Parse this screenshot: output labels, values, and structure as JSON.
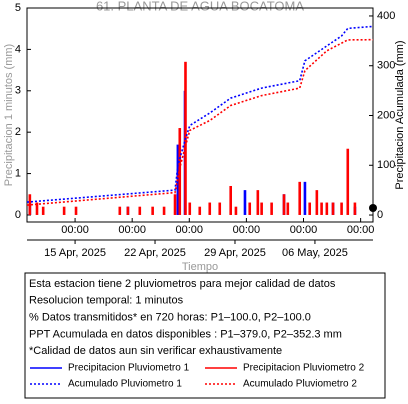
{
  "chart_data": {
    "type": "bar",
    "title": "61. PLANTA DE AGUA BOCATOMA",
    "ylabel": "Precipitacion 1 minutos (mm)",
    "y2label": "Precipitacion Acumulada (mm)",
    "xlabel": "Tiempo",
    "xlim": [
      "2025-04-10 19:00",
      "2025-05-11 02:00"
    ],
    "xticks": [
      {
        "value": "2025-04-15 00:00",
        "label": "00:00"
      },
      {
        "value": "2025-04-20 00:00",
        "label": "00:00"
      },
      {
        "value": "2025-04-25 00:00",
        "label": "00:00"
      },
      {
        "value": "2025-04-30 00:00",
        "label": "00:00"
      },
      {
        "value": "2025-05-05 00:00",
        "label": "00:00"
      },
      {
        "value": "2025-05-10 00:00",
        "label": "00:00"
      }
    ],
    "xdate_labels": [
      {
        "value": "2025-04-15 00:00",
        "label": "15 Apr, 2025"
      },
      {
        "value": "2025-04-22 00:00",
        "label": "22 Apr, 2025"
      },
      {
        "value": "2025-04-29 00:00",
        "label": "29 Apr, 2025"
      },
      {
        "value": "2025-05-06 00:00",
        "label": "06 May, 2025"
      }
    ],
    "ylim": [
      -0.17,
      5.0
    ],
    "yticks": [
      0,
      1,
      2,
      3,
      4,
      5
    ],
    "y2lim": [
      -14,
      416
    ],
    "y2ticks": [
      0,
      100,
      200,
      300,
      400
    ],
    "grid": false,
    "legend": "bottom",
    "series": [
      {
        "name": "Precipitacion Pluviometro 1",
        "type": "bar",
        "color": "#0000ff",
        "x": [
          "2025-04-11 01:00",
          "2025-04-19 15:00",
          "2025-04-24 00:00",
          "2025-04-24 15:00",
          "2025-04-29 21:00",
          "2025-05-03 07:00",
          "2025-05-05 03:00",
          "2025-05-07 14:00",
          "2025-05-09 12:00"
        ],
        "values": [
          0.3,
          0.2,
          1.7,
          3.0,
          0.6,
          0.5,
          0.8,
          0.3,
          0.2
        ]
      },
      {
        "name": "Precipitacion Pluviometro 2",
        "type": "bar",
        "color": "#ff0000",
        "x": [
          "2025-04-11 01:00",
          "2025-04-11 16:00",
          "2025-04-12 05:00",
          "2025-04-14 01:00",
          "2025-04-15 02:00",
          "2025-04-18 22:00",
          "2025-04-19 15:00",
          "2025-04-20 16:00",
          "2025-04-21 19:00",
          "2025-04-22 19:00",
          "2025-04-23 18:00",
          "2025-04-24 04:00",
          "2025-04-24 16:00",
          "2025-04-25 01:00",
          "2025-04-25 22:00",
          "2025-04-26 19:00",
          "2025-04-27 16:00",
          "2025-04-28 15:00",
          "2025-04-29 02:00",
          "2025-04-30 07:00",
          "2025-05-01 00:00",
          "2025-05-01 08:00",
          "2025-05-02 05:00",
          "2025-05-03 07:00",
          "2025-05-03 15:00",
          "2025-05-04 16:00",
          "2025-05-05 13:00",
          "2025-05-06 04:00",
          "2025-05-06 14:00",
          "2025-05-07 01:00",
          "2025-05-07 14:00",
          "2025-05-08 08:00",
          "2025-05-08 21:00",
          "2025-05-09 12:00"
        ],
        "values": [
          0.5,
          0.3,
          0.2,
          0.2,
          0.2,
          0.2,
          0.2,
          0.2,
          0.2,
          0.2,
          0.5,
          2.1,
          3.7,
          0.3,
          0.2,
          0.3,
          0.3,
          0.7,
          0.2,
          0.3,
          0.6,
          0.3,
          0.3,
          0.5,
          0.3,
          0.8,
          0.3,
          0.6,
          0.3,
          0.3,
          0.3,
          0.3,
          1.6,
          0.3
        ]
      },
      {
        "name": "Acumulado Pluviometro 1",
        "type": "line",
        "axis": "y2",
        "color": "#0000ff",
        "x": [
          "2025-04-10 19:00",
          "2025-04-23 18:00",
          "2025-04-24 00:00",
          "2025-04-24 15:00",
          "2025-04-25 01:00",
          "2025-04-26 19:00",
          "2025-04-28 15:00",
          "2025-05-01 08:00",
          "2025-05-04 16:00",
          "2025-05-05 03:00",
          "2025-05-08 08:00",
          "2025-05-08 21:00",
          "2025-05-11 02:00"
        ],
        "values": [
          26,
          50,
          100,
          150,
          180,
          205,
          235,
          255,
          270,
          310,
          360,
          375,
          379
        ]
      },
      {
        "name": "Acumulado Pluviometro 2",
        "type": "line",
        "axis": "y2",
        "color": "#ff0000",
        "x": [
          "2025-04-10 19:00",
          "2025-04-23 18:00",
          "2025-04-24 04:00",
          "2025-04-24 15:00",
          "2025-04-25 01:00",
          "2025-04-26 19:00",
          "2025-04-28 15:00",
          "2025-05-01 08:00",
          "2025-05-04 16:00",
          "2025-05-05 03:00",
          "2025-05-07 01:00",
          "2025-05-08 21:00",
          "2025-05-11 02:00"
        ],
        "values": [
          20,
          45,
          95,
          135,
          170,
          190,
          220,
          240,
          255,
          290,
          330,
          352,
          352.3
        ]
      }
    ]
  },
  "info_box": {
    "lines": [
      "Esta estacion tiene 2 pluviometros para mejor calidad de datos",
      "Resolucion temporal: 1 minutos",
      "% Datos transmitidos* en 720 horas: P1–100.0, P2–100.0",
      "PPT Acumulada en datos disponibles : P1–379.0, P2–352.3 mm",
      "*Calidad de datos aun sin verificar exhaustivamente"
    ]
  }
}
